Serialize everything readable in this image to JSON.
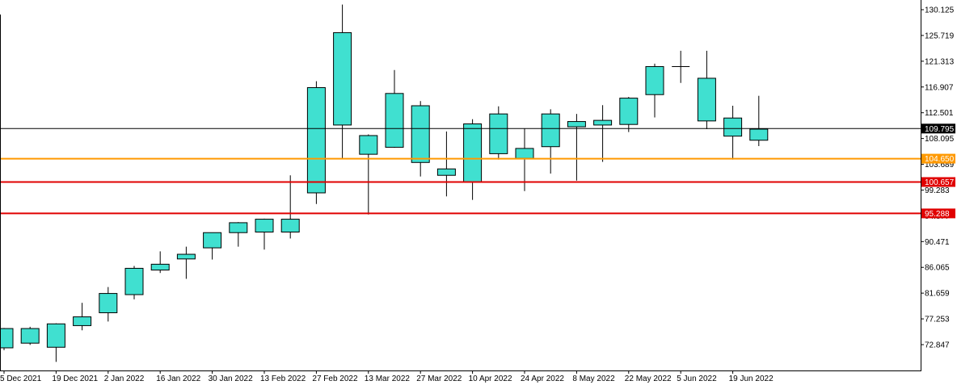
{
  "chart_data": {
    "type": "candlestick",
    "x_labels": [
      "5 Dec 2021",
      "19 Dec 2021",
      "2 Jan 2022",
      "16 Jan 2022",
      "30 Jan 2022",
      "13 Feb 2022",
      "27 Feb 2022",
      "13 Mar 2022",
      "27 Mar 2022",
      "10 Apr 2022",
      "24 Apr 2022",
      "8 May 2022",
      "22 May 2022",
      "5 Jun 2022",
      "19 Jun 2022"
    ],
    "y_ticks": [
      "130.125",
      "125.719",
      "121.313",
      "116.907",
      "112.501",
      "108.095",
      "103.689",
      "99.283",
      "94.877",
      "90.471",
      "86.065",
      "81.659",
      "77.253",
      "72.847"
    ],
    "ylim": [
      68.5,
      131.1
    ],
    "candles": [
      {
        "o": 72.3,
        "h": 75.7,
        "l": 71.9,
        "c": 75.6
      },
      {
        "o": 73.1,
        "h": 75.9,
        "l": 72.8,
        "c": 75.6
      },
      {
        "o": 72.4,
        "h": 76.5,
        "l": 69.9,
        "c": 76.4
      },
      {
        "o": 76.1,
        "h": 80.0,
        "l": 75.3,
        "c": 77.6
      },
      {
        "o": 78.3,
        "h": 82.7,
        "l": 76.8,
        "c": 81.6
      },
      {
        "o": 81.4,
        "h": 86.3,
        "l": 80.6,
        "c": 85.9
      },
      {
        "o": 85.6,
        "h": 88.8,
        "l": 85.1,
        "c": 86.6
      },
      {
        "o": 87.5,
        "h": 89.6,
        "l": 84.1,
        "c": 88.3
      },
      {
        "o": 89.4,
        "h": 91.5,
        "l": 87.4,
        "c": 92.0
      },
      {
        "o": 92.0,
        "h": 93.8,
        "l": 89.6,
        "c": 93.7
      },
      {
        "o": 92.1,
        "h": 94.4,
        "l": 89.1,
        "c": 94.3
      },
      {
        "o": 92.1,
        "h": 101.8,
        "l": 91.0,
        "c": 94.3
      },
      {
        "o": 98.8,
        "h": 117.9,
        "l": 96.9,
        "c": 116.8
      },
      {
        "o": 110.4,
        "h": 131.0,
        "l": 104.6,
        "c": 126.2
      },
      {
        "o": 105.4,
        "h": 108.8,
        "l": 95.1,
        "c": 108.6
      },
      {
        "o": 106.6,
        "h": 119.8,
        "l": 106.5,
        "c": 115.8
      },
      {
        "o": 113.7,
        "h": 114.5,
        "l": 101.6,
        "c": 104.0
      },
      {
        "o": 101.8,
        "h": 109.3,
        "l": 98.2,
        "c": 102.9
      },
      {
        "o": 100.7,
        "h": 111.4,
        "l": 97.6,
        "c": 110.6
      },
      {
        "o": 105.5,
        "h": 113.6,
        "l": 104.5,
        "c": 112.3
      },
      {
        "o": 106.4,
        "h": 109.8,
        "l": 99.1,
        "c": 104.7
      },
      {
        "o": 106.7,
        "h": 113.1,
        "l": 102.1,
        "c": 112.3
      },
      {
        "o": 110.1,
        "h": 112.3,
        "l": 100.9,
        "c": 111.0
      },
      {
        "o": 110.4,
        "h": 113.8,
        "l": 104.1,
        "c": 111.2
      },
      {
        "o": 110.5,
        "h": 115.2,
        "l": 109.2,
        "c": 115.0
      },
      {
        "o": 115.6,
        "h": 120.9,
        "l": 111.7,
        "c": 120.4
      },
      {
        "o": 120.4,
        "h": 123.1,
        "l": 117.6,
        "c": 120.4
      },
      {
        "o": 118.4,
        "h": 123.1,
        "l": 109.7,
        "c": 111.1
      },
      {
        "o": 108.5,
        "h": 113.7,
        "l": 104.5,
        "c": 111.6
      },
      {
        "o": 109.7,
        "h": 115.4,
        "l": 106.8,
        "c": 107.8
      }
    ],
    "hlines": [
      {
        "value": 109.795,
        "label": "109.795",
        "color": "#000000",
        "label_bg": "#000000",
        "label_color": "#ffffff",
        "width": 1
      },
      {
        "value": 104.65,
        "label": "104.650",
        "color": "#ff9900",
        "label_bg": "#ff9900",
        "label_color": "#ffffff",
        "width": 2
      },
      {
        "value": 100.657,
        "label": "100.657",
        "color": "#e00000",
        "label_bg": "#e00000",
        "label_color": "#ffffff",
        "width": 2
      },
      {
        "value": 95.288,
        "label": "95.288",
        "color": "#e00000",
        "label_bg": "#e00000",
        "label_color": "#ffffff",
        "width": 2
      }
    ],
    "colors": {
      "candle_body": "#40e0d0",
      "candle_border": "#000000",
      "axis": "#000000",
      "background": "#ffffff"
    },
    "grid": false
  }
}
